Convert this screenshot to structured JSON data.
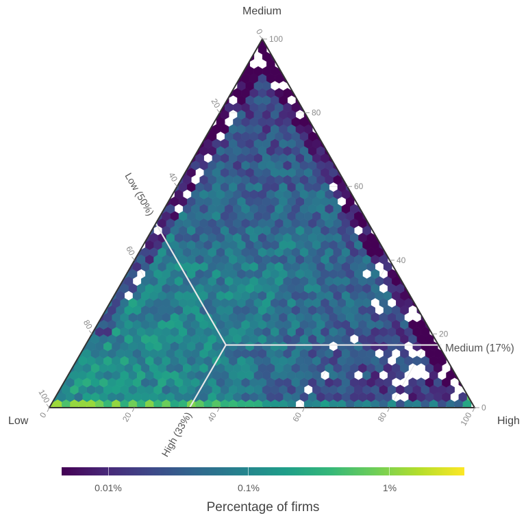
{
  "chart_data": {
    "type": "heatmap",
    "subtype": "ternary hexbin",
    "title": "",
    "vertices": {
      "top": "Medium",
      "left": "Low",
      "right": "High"
    },
    "axes": {
      "low_axis_ticks": [
        "0",
        "20",
        "40",
        "60",
        "80",
        "100"
      ],
      "medium_axis_ticks": [
        "0",
        "20",
        "40",
        "60",
        "80",
        "100"
      ],
      "high_axis_ticks": [
        "0",
        "20",
        "40",
        "60",
        "80",
        "100"
      ]
    },
    "reference_point": {
      "low_pct": 50,
      "medium_pct": 17,
      "high_pct": 33
    },
    "reference_labels": {
      "low": "Low (50%)",
      "medium": "Medium (17%)",
      "high": "High (33%)"
    },
    "colorbar": {
      "title": "Percentage of firms",
      "scale": "log",
      "tick_labels": [
        "0.01%",
        "0.1%",
        "1%"
      ],
      "colormap": "viridis",
      "colors": [
        "#440154",
        "#482878",
        "#3e4989",
        "#31688e",
        "#26828e",
        "#1f9e89",
        "#35b779",
        "#6ece58",
        "#b5de2b",
        "#fde725"
      ]
    },
    "density_notes": "Highest density along the Low–High base near Low vertex (0–20% High, ~0% Medium, bright yellow); moderate green density in lower-left region; sparse purple bins with gaps toward High vertex and Medium apex."
  },
  "labels": {
    "vertex_medium": "Medium",
    "vertex_low": "Low",
    "vertex_high": "High"
  },
  "colorbar": {
    "title": "Percentage of firms",
    "ticks": [
      "0.01%",
      "0.1%",
      "1%"
    ]
  }
}
